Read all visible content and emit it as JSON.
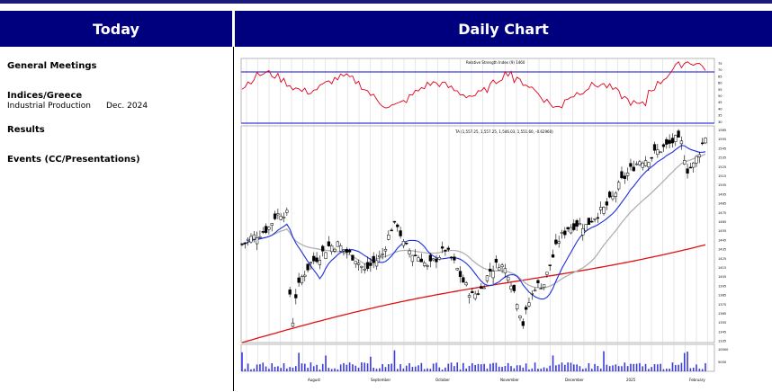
{
  "header": {
    "left_title": "Today",
    "right_title": "Daily Chart"
  },
  "today": {
    "general_meetings": "General Meetings",
    "indices_heading": "Indices/Greece",
    "indices_items": [
      {
        "name": "Industrial Production",
        "value": "Dec. 2024"
      }
    ],
    "results": "Results",
    "events": "Events (CC/Presentations)"
  },
  "chart": {
    "rsi_label": "Relative Strength Index (9) 1460",
    "price_label": "TA (1,557.25, 1,557.25, 1,546.03, 1,551.60, -0.62960)",
    "months": [
      "August",
      "September",
      "October",
      "November",
      "December",
      "2025",
      "February"
    ],
    "rsi_ticks": [
      "75",
      "70",
      "65",
      "60",
      "55",
      "50",
      "45",
      "40",
      "35",
      "30"
    ],
    "price_ticks": [
      "1565",
      "1555",
      "1545",
      "1535",
      "1525",
      "1515",
      "1505",
      "1495",
      "1485",
      "1475",
      "1465",
      "1455",
      "1445",
      "1435",
      "1425",
      "1415",
      "1405",
      "1395",
      "1385",
      "1375",
      "1365",
      "1355",
      "1345",
      "1335"
    ],
    "vol_ticks": [
      "10000",
      "5000"
    ],
    "colors": {
      "rsi": "#e0001a",
      "band": "#3b3bdc",
      "ma_fast": "#1a2fe0",
      "ma_mid": "#b0b0b0",
      "ma_slow": "#e01010"
    }
  }
}
